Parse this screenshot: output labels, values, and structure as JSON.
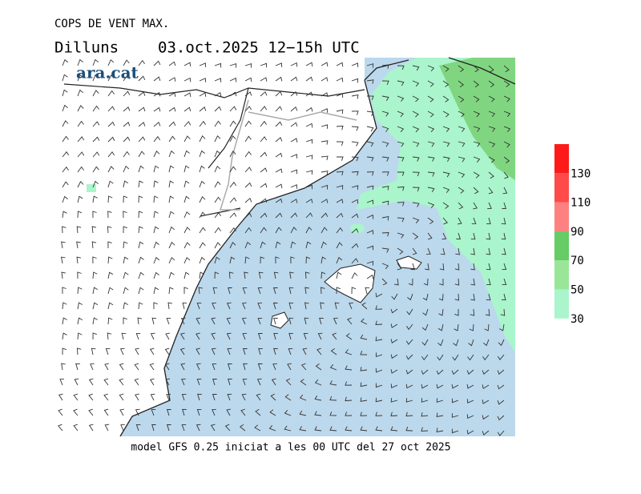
{
  "header": {
    "title": "COPS DE VENT MAX.",
    "day": "Dilluns",
    "date": "03.oct.2025 12−15h UTC"
  },
  "logo": "ara.cat",
  "footer": "model GFS 0.25 iniciat a les 00 UTC del 27 oct 2025",
  "legend": {
    "labels": [
      30,
      50,
      70,
      90,
      110,
      130
    ],
    "colors": [
      "#aaf5cc",
      "#99e699",
      "#66cc66",
      "#ff8080",
      "#ff4a4a",
      "#ff1a1a"
    ]
  }
}
